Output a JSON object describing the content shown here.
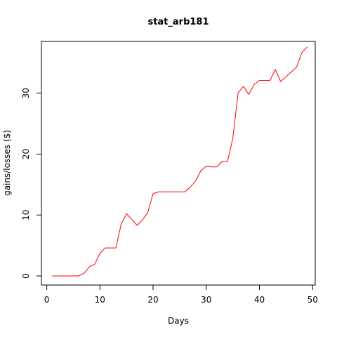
{
  "colors": {
    "line": "#ff0000",
    "axis": "#000000",
    "background": "#ffffff"
  },
  "chart_data": {
    "type": "line",
    "title": "stat_arb181",
    "xlabel": "Days",
    "ylabel": "gains/losses ($)",
    "xlim": [
      -1,
      50.5
    ],
    "ylim": [
      -1.5,
      38.5
    ],
    "xticks": [
      0,
      10,
      20,
      30,
      40,
      50
    ],
    "xtick_labels": [
      "0",
      "10",
      "20",
      "30",
      "40",
      "50"
    ],
    "yticks": [
      0,
      10,
      20,
      30
    ],
    "ytick_labels": [
      "0",
      "10",
      "20",
      "30"
    ],
    "grid": false,
    "series": [
      {
        "color": "#ff0000",
        "x": [
          1,
          2,
          3,
          4,
          5,
          6,
          7,
          8,
          9,
          10,
          11,
          12,
          13,
          14,
          15,
          16,
          17,
          18,
          19,
          20,
          21,
          22,
          23,
          24,
          25,
          26,
          27,
          28,
          29,
          30,
          31,
          32,
          33,
          34,
          35,
          36,
          37,
          38,
          39,
          40,
          41,
          42,
          43,
          44,
          45,
          46,
          47,
          48,
          49
        ],
        "y": [
          0,
          0,
          0,
          0,
          0,
          0,
          0.4,
          1.5,
          1.9,
          3.7,
          4.6,
          4.6,
          4.6,
          8.5,
          10.2,
          9.3,
          8.3,
          9.2,
          10.4,
          13.5,
          13.8,
          13.8,
          13.8,
          13.8,
          13.8,
          13.8,
          14.6,
          15.6,
          17.3,
          18.0,
          17.9,
          17.9,
          18.8,
          18.8,
          22.6,
          30.1,
          31.1,
          29.8,
          31.4,
          32.1,
          32.1,
          32.1,
          33.9,
          31.9,
          32.7,
          33.5,
          34.3,
          36.7,
          37.6
        ]
      }
    ]
  }
}
